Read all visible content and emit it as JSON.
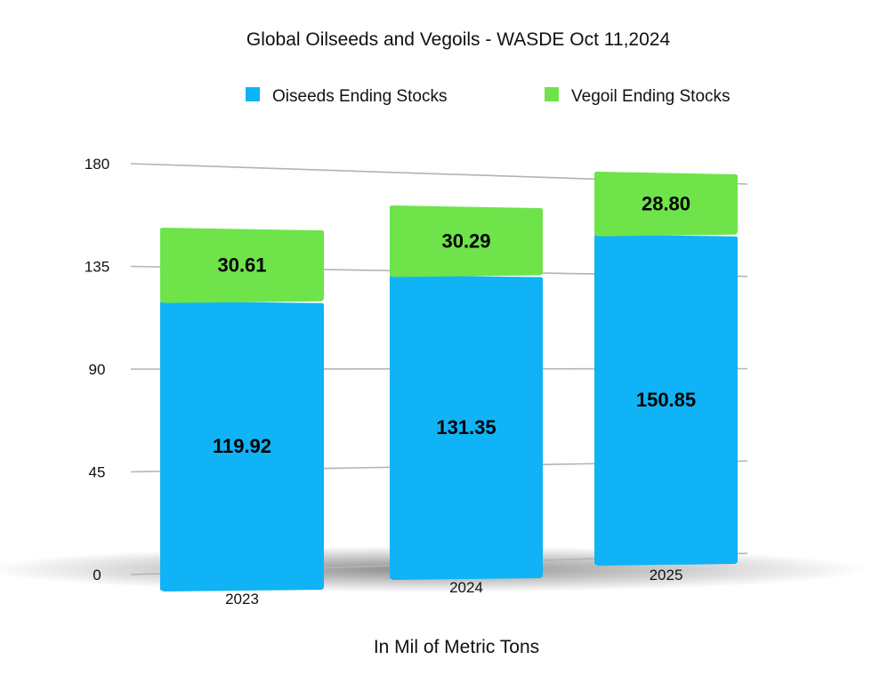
{
  "chart_data": {
    "type": "bar",
    "stacked": true,
    "title": "Global Oilseeds and Vegoils - WASDE Oct 11,2024",
    "xlabel": "In Mil of Metric Tons",
    "ylabel": "",
    "categories": [
      "2023",
      "2024",
      "2025"
    ],
    "series": [
      {
        "name": "Oiseeds Ending Stocks",
        "values": [
          119.92,
          131.35,
          150.85
        ],
        "labels": [
          "119.92",
          "131.35",
          "150.85"
        ],
        "color": "#10b3f5"
      },
      {
        "name": "Vegoil Ending Stocks",
        "values": [
          30.61,
          30.29,
          28.8
        ],
        "labels": [
          "30.61",
          "30.29",
          "28.80"
        ],
        "color": "#6ee34a"
      }
    ],
    "ylim": [
      0,
      180
    ],
    "yticks": [
      "0",
      "45",
      "90",
      "135",
      "180"
    ],
    "legend": "top",
    "grid": true
  }
}
